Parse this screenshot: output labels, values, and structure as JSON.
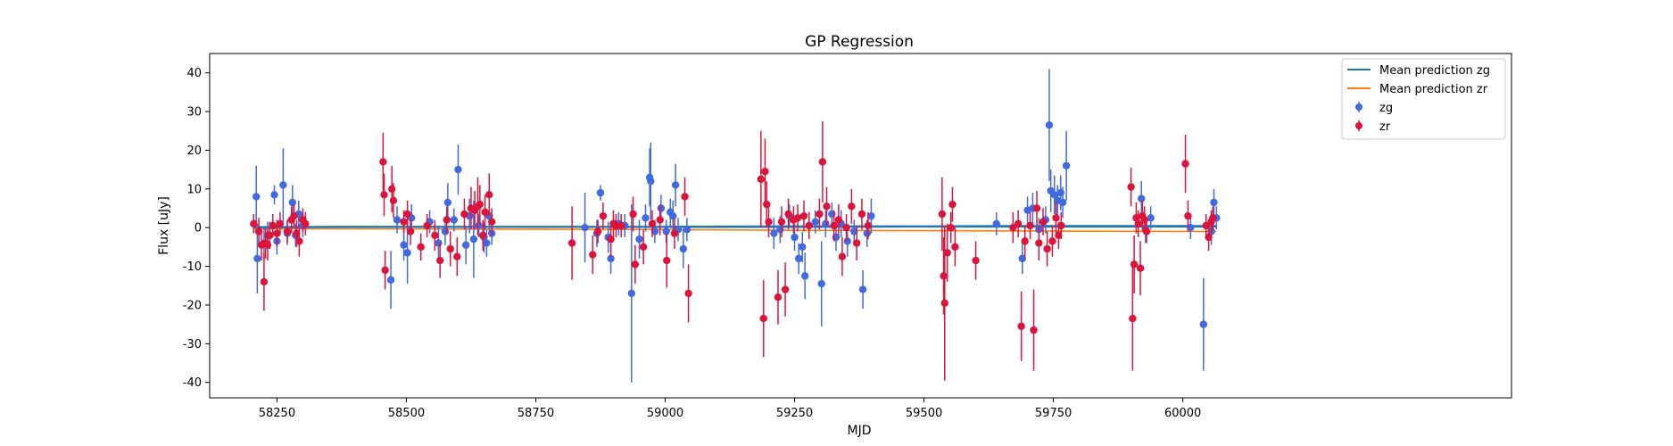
{
  "chart_data": {
    "type": "scatter",
    "title": "GP Regression",
    "xlabel": "MJD",
    "ylabel": "Flux [uJy]",
    "xlim": [
      58120,
      60635
    ],
    "ylim": [
      -44,
      45
    ],
    "xticks": [
      58250,
      58500,
      58750,
      59000,
      59250,
      59500,
      59750,
      60000
    ],
    "yticks": [
      -40,
      -30,
      -20,
      -10,
      0,
      10,
      20,
      30,
      40
    ],
    "grid": false,
    "legend": {
      "placement": "upper right",
      "entries": [
        "Mean prediction zg",
        "Mean prediction zr",
        "zg",
        "zr"
      ]
    },
    "colors": {
      "zg_line": "#1f77b4",
      "zr_line": "#ff7f0e",
      "zg_points": "#4169e1",
      "zr_points": "#dc143c"
    },
    "lines": [
      {
        "name": "Mean prediction zg",
        "color": "#1f77b4",
        "x": [
          58205,
          58400,
          58700,
          59000,
          59250,
          59500,
          59750,
          60000,
          60065
        ],
        "y": [
          0.2,
          0.3,
          0.3,
          0.3,
          0.4,
          0.4,
          0.5,
          0.5,
          0.5
        ]
      },
      {
        "name": "Mean prediction zr",
        "color": "#ff7f0e",
        "x": [
          58205,
          58400,
          58700,
          59000,
          59250,
          59500,
          59750,
          60000,
          60065
        ],
        "y": [
          -0.3,
          -0.3,
          -0.4,
          -0.5,
          -0.7,
          -0.8,
          -0.9,
          -1.0,
          -1.0
        ]
      },
      {
        "name": "",
        "color": "#1f77b4",
        "x": [
          58205,
          58400,
          58700,
          59000,
          59250,
          59500,
          59750,
          60000,
          60065
        ],
        "y": [
          0.0,
          0.1,
          0.1,
          0.1,
          0.1,
          0.2,
          0.2,
          0.2,
          0.2
        ]
      }
    ],
    "series": [
      {
        "name": "zg",
        "color": "#4169e1",
        "x": [
          58210,
          58212,
          58225,
          58232,
          58245,
          58250,
          58262,
          58270,
          58280,
          58286,
          58292,
          58300,
          58470,
          58482,
          58495,
          58502,
          58510,
          58545,
          58562,
          58575,
          58580,
          58592,
          58600,
          58615,
          58622,
          58630,
          58640,
          58650,
          58655,
          58660,
          58665,
          58845,
          58868,
          58875,
          58890,
          58895,
          58910,
          58922,
          58935,
          58950,
          58962,
          58970,
          58972,
          58980,
          58992,
          59002,
          59010,
          59015,
          59020,
          59025,
          59035,
          59042,
          59210,
          59222,
          59240,
          59250,
          59258,
          59265,
          59270,
          59290,
          59302,
          59310,
          59322,
          59330,
          59340,
          59352,
          59365,
          59382,
          59390,
          59398,
          59640,
          59690,
          59700,
          59710,
          59722,
          59735,
          59742,
          59745,
          59752,
          59758,
          59764,
          59768,
          59775,
          59920,
          59928,
          59938,
          60015,
          60040,
          60055,
          60060,
          60065
        ],
        "y": [
          8.0,
          -8.0,
          -4.0,
          -2.0,
          8.5,
          -3.5,
          11.0,
          -1.5,
          6.5,
          -2.0,
          3.5,
          0.5,
          -13.5,
          2.0,
          -4.5,
          -6.5,
          2.5,
          1.5,
          -4.0,
          -1.0,
          6.5,
          2.0,
          15.0,
          -4.5,
          3.0,
          -3.0,
          0.5,
          -2.5,
          -4.0,
          3.0,
          -1.5,
          0.0,
          -1.5,
          9.0,
          -2.5,
          -8.0,
          1.0,
          0.5,
          -17.0,
          -3.0,
          2.5,
          13.0,
          12.0,
          -1.0,
          5.0,
          -1.0,
          4.0,
          3.0,
          11.0,
          -0.5,
          -5.5,
          -0.5,
          -1.5,
          -0.5,
          3.0,
          -2.5,
          -8.0,
          -5.0,
          -12.5,
          1.5,
          -14.5,
          1.0,
          3.5,
          -2.5,
          1.0,
          -3.5,
          -1.0,
          -16.0,
          -1.5,
          3.0,
          1.0,
          -8.0,
          4.5,
          5.0,
          -0.5,
          2.0,
          26.5,
          9.5,
          8.5,
          7.0,
          9.0,
          6.5,
          16.0,
          7.5,
          -0.5,
          2.5,
          0.0,
          -25.0,
          -1.0,
          6.5,
          2.5
        ],
        "yerr": [
          8.0,
          9.0,
          4.0,
          3.5,
          2.5,
          3.5,
          9.5,
          3.0,
          4.5,
          3.0,
          3.5,
          3.0,
          7.5,
          3.5,
          4.0,
          8.0,
          3.5,
          3.0,
          4.0,
          3.5,
          5.0,
          3.0,
          6.5,
          5.0,
          4.5,
          10.0,
          3.0,
          4.0,
          3.5,
          4.0,
          3.0,
          9.0,
          3.5,
          2.0,
          4.0,
          4.0,
          3.0,
          3.0,
          23.0,
          5.0,
          3.5,
          7.5,
          10.0,
          3.0,
          3.5,
          3.0,
          3.5,
          4.0,
          5.5,
          3.0,
          5.0,
          3.0,
          4.0,
          3.5,
          3.0,
          3.5,
          4.0,
          4.0,
          6.0,
          3.0,
          11.0,
          3.5,
          3.0,
          3.5,
          3.5,
          4.0,
          3.0,
          5.0,
          3.5,
          4.5,
          3.0,
          4.0,
          3.5,
          4.0,
          3.0,
          3.5,
          14.5,
          5.5,
          5.0,
          4.0,
          4.5,
          4.0,
          9.0,
          4.5,
          3.5,
          3.0,
          3.0,
          12.0,
          3.5,
          3.5,
          3.0
        ]
      },
      {
        "name": "zr",
        "color": "#dc143c",
        "x": [
          58205,
          58215,
          58220,
          58225,
          58228,
          58232,
          58236,
          58242,
          58250,
          58256,
          58270,
          58278,
          58283,
          58288,
          58293,
          58300,
          58305,
          58455,
          58457,
          58459,
          58472,
          58475,
          58495,
          58502,
          58508,
          58528,
          58540,
          58555,
          58565,
          58578,
          58585,
          58598,
          58612,
          58625,
          58632,
          58638,
          58642,
          58648,
          58652,
          58660,
          58665,
          58820,
          58860,
          58870,
          58880,
          58895,
          58900,
          58905,
          58915,
          58938,
          58942,
          58958,
          58975,
          58990,
          59003,
          59018,
          59038,
          59045,
          59185,
          59190,
          59193,
          59196,
          59200,
          59218,
          59225,
          59232,
          59238,
          59248,
          59256,
          59268,
          59278,
          59298,
          59304,
          59312,
          59326,
          59335,
          59342,
          59350,
          59360,
          59370,
          59380,
          59392,
          59535,
          59538,
          59540,
          59545,
          59552,
          59555,
          59560,
          59600,
          59672,
          59682,
          59688,
          59695,
          59705,
          59712,
          59718,
          59722,
          59730,
          59738,
          59748,
          59755,
          59760,
          59765,
          59900,
          59903,
          59906,
          59910,
          59914,
          59918,
          59922,
          59926,
          59930,
          60005,
          60010,
          60045,
          60050,
          60055,
          60058
        ],
        "y": [
          1.0,
          -1.0,
          -4.5,
          -14.0,
          -4.0,
          -4.5,
          -2.0,
          0.5,
          -1.5,
          1.0,
          -1.0,
          2.0,
          3.0,
          -1.5,
          -3.5,
          2.0,
          1.0,
          17.0,
          8.5,
          -11.0,
          10.0,
          7.0,
          1.5,
          3.5,
          -1.0,
          -5.0,
          0.5,
          -2.0,
          -8.5,
          2.0,
          -5.5,
          -7.5,
          3.5,
          5.0,
          4.5,
          5.5,
          6.0,
          -2.0,
          4.0,
          8.5,
          1.5,
          -4.0,
          -7.0,
          -1.0,
          3.0,
          -3.0,
          1.0,
          0.5,
          0.5,
          3.5,
          -9.5,
          -5.0,
          1.0,
          2.0,
          -8.5,
          -1.5,
          8.0,
          -17.0,
          12.5,
          -23.5,
          14.5,
          6.0,
          1.5,
          -18.0,
          1.5,
          -16.0,
          3.5,
          2.0,
          2.5,
          3.0,
          0.5,
          3.5,
          17.0,
          5.5,
          0.5,
          2.0,
          -7.5,
          0.0,
          5.5,
          -4.0,
          3.5,
          0.5,
          3.5,
          -12.5,
          -19.5,
          -6.5,
          0.0,
          6.0,
          -5.0,
          -8.5,
          0.0,
          1.0,
          -25.5,
          -3.5,
          0.5,
          -26.5,
          5.0,
          -4.0,
          1.5,
          -5.5,
          -3.5,
          2.5,
          -2.0,
          0.5,
          10.5,
          -23.5,
          -9.5,
          2.5,
          1.0,
          -10.5,
          3.0,
          2.0,
          -1.0,
          16.5,
          3.0,
          0.5,
          -2.5,
          1.5,
          2.5
        ],
        "yerr": [
          2.5,
          3.5,
          4.0,
          7.5,
          4.0,
          4.0,
          3.5,
          3.0,
          3.5,
          3.0,
          3.0,
          3.5,
          3.0,
          3.5,
          4.0,
          3.0,
          3.0,
          7.5,
          5.5,
          5.0,
          6.0,
          4.5,
          3.0,
          3.5,
          3.5,
          3.5,
          3.0,
          4.0,
          4.5,
          3.5,
          4.5,
          5.0,
          4.0,
          5.5,
          5.0,
          7.5,
          5.0,
          4.0,
          4.5,
          5.5,
          3.5,
          9.5,
          5.0,
          3.0,
          3.5,
          4.5,
          3.5,
          3.0,
          3.0,
          4.5,
          5.0,
          4.5,
          3.5,
          4.0,
          7.0,
          4.0,
          5.0,
          7.5,
          12.5,
          10.0,
          8.5,
          6.0,
          4.0,
          7.0,
          4.0,
          7.0,
          4.0,
          3.5,
          3.5,
          4.0,
          3.5,
          4.0,
          10.5,
          5.0,
          4.0,
          4.0,
          5.0,
          3.5,
          4.5,
          4.5,
          4.0,
          3.5,
          9.5,
          10.0,
          20.0,
          7.5,
          4.0,
          4.5,
          5.0,
          5.0,
          4.0,
          3.5,
          9.0,
          4.0,
          3.5,
          10.5,
          4.5,
          4.5,
          3.5,
          4.5,
          4.0,
          4.0,
          3.5,
          3.5,
          5.0,
          13.5,
          7.5,
          4.0,
          3.5,
          7.0,
          4.0,
          3.5,
          3.0,
          7.5,
          4.0,
          3.0,
          3.5,
          3.0,
          3.0
        ]
      }
    ]
  }
}
